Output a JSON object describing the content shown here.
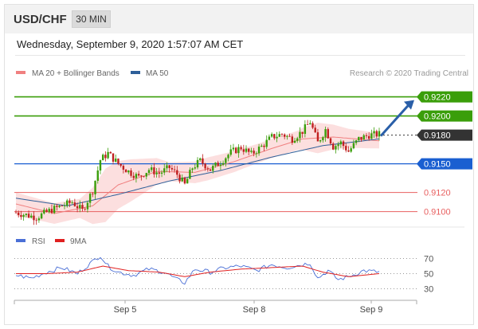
{
  "header": {
    "symbol": "USD/CHF",
    "timeframe": "30 MIN",
    "timestamp": "Wednesday, September 9, 2020 1:57:07 AM CET"
  },
  "legend": {
    "ma20_label": "MA 20 + Bollinger Bands",
    "ma50_label": "MA 50",
    "ma20_color": "#f08080",
    "ma50_color": "#2e5f99",
    "copyright": "Research © 2020 Trading Central"
  },
  "rsi_legend": {
    "rsi_label": "RSI",
    "ma_label": "9MA",
    "rsi_color": "#4a6fd6",
    "ma_color": "#e02020"
  },
  "colors": {
    "resistance": "#3a9e0a",
    "support_pivot": "#1a5fd1",
    "support_minor": "#e86060",
    "current_price": "#333333",
    "bull_candle": "#3a9e0a",
    "bear_candle": "#c02020",
    "band_fill": "#fbd9d9",
    "arrow": "#2a5fa8"
  },
  "chart_data": [
    {
      "type": "candlestick",
      "title": "",
      "x_tick_labels": [
        "Sep 5",
        "Sep 8",
        "Sep 9"
      ],
      "ylim": [
        0.9088,
        0.9238
      ],
      "levels": [
        {
          "value": 0.922,
          "label": "0.9220",
          "kind": "resistance"
        },
        {
          "value": 0.92,
          "label": "0.9200",
          "kind": "resistance"
        },
        {
          "value": 0.918,
          "label": "0.9180",
          "kind": "current"
        },
        {
          "value": 0.915,
          "label": "0.9150",
          "kind": "pivot"
        },
        {
          "value": 0.912,
          "label": "0.9120",
          "kind": "support"
        },
        {
          "value": 0.91,
          "label": "0.9100",
          "kind": "support"
        }
      ],
      "price_anchors": [
        [
          0,
          0.9099
        ],
        [
          8,
          0.9094
        ],
        [
          14,
          0.9102
        ],
        [
          18,
          0.9106
        ],
        [
          22,
          0.911
        ],
        [
          26,
          0.9101
        ],
        [
          30,
          0.9122
        ],
        [
          33,
          0.9154
        ],
        [
          36,
          0.9161
        ],
        [
          40,
          0.915
        ],
        [
          44,
          0.9142
        ],
        [
          48,
          0.9136
        ],
        [
          52,
          0.9144
        ],
        [
          56,
          0.914
        ],
        [
          60,
          0.9146
        ],
        [
          63,
          0.9139
        ],
        [
          66,
          0.9128
        ],
        [
          69,
          0.9146
        ],
        [
          72,
          0.9153
        ],
        [
          76,
          0.9144
        ],
        [
          80,
          0.9152
        ],
        [
          84,
          0.9162
        ],
        [
          88,
          0.9167
        ],
        [
          92,
          0.916
        ],
        [
          96,
          0.9168
        ],
        [
          100,
          0.9178
        ],
        [
          104,
          0.9181
        ],
        [
          108,
          0.9176
        ],
        [
          112,
          0.9184
        ],
        [
          115,
          0.9194
        ],
        [
          118,
          0.9172
        ],
        [
          121,
          0.9186
        ],
        [
          124,
          0.9168
        ],
        [
          127,
          0.9172
        ],
        [
          130,
          0.9163
        ],
        [
          134,
          0.9176
        ],
        [
          138,
          0.918
        ],
        [
          142,
          0.9181
        ]
      ],
      "ma20_anchors": [
        [
          0,
          0.9108
        ],
        [
          15,
          0.9098
        ],
        [
          30,
          0.9106
        ],
        [
          40,
          0.9128
        ],
        [
          55,
          0.9142
        ],
        [
          70,
          0.9141
        ],
        [
          85,
          0.9152
        ],
        [
          100,
          0.9166
        ],
        [
          112,
          0.9176
        ],
        [
          124,
          0.9178
        ],
        [
          142,
          0.9174
        ]
      ],
      "ma50_anchors": [
        [
          0,
          0.9114
        ],
        [
          20,
          0.9106
        ],
        [
          40,
          0.9118
        ],
        [
          60,
          0.9132
        ],
        [
          80,
          0.9143
        ],
        [
          100,
          0.9157
        ],
        [
          120,
          0.9169
        ],
        [
          142,
          0.9176
        ]
      ],
      "band_halfwidth_anchors": [
        [
          0,
          0.0012
        ],
        [
          25,
          0.001
        ],
        [
          35,
          0.0028
        ],
        [
          45,
          0.0022
        ],
        [
          60,
          0.001
        ],
        [
          75,
          0.0012
        ],
        [
          95,
          0.001
        ],
        [
          110,
          0.001
        ],
        [
          118,
          0.0016
        ],
        [
          130,
          0.001
        ],
        [
          142,
          0.0008
        ]
      ],
      "forecast_arrow": {
        "from": 0.918,
        "to": 0.922
      }
    },
    {
      "type": "line",
      "title": "RSI",
      "ylim": [
        20,
        80
      ],
      "y_ticks": [
        70,
        50,
        30
      ],
      "series": [
        {
          "name": "RSI",
          "anchors": [
            [
              0,
              48
            ],
            [
              6,
              44
            ],
            [
              12,
              52
            ],
            [
              18,
              58
            ],
            [
              24,
              50
            ],
            [
              30,
              66
            ],
            [
              33,
              74
            ],
            [
              36,
              60
            ],
            [
              40,
              52
            ],
            [
              46,
              48
            ],
            [
              52,
              56
            ],
            [
              58,
              52
            ],
            [
              63,
              42
            ],
            [
              66,
              38
            ],
            [
              70,
              56
            ],
            [
              76,
              52
            ],
            [
              82,
              58
            ],
            [
              88,
              60
            ],
            [
              94,
              54
            ],
            [
              100,
              62
            ],
            [
              106,
              58
            ],
            [
              112,
              62
            ],
            [
              115,
              64
            ],
            [
              118,
              44
            ],
            [
              122,
              54
            ],
            [
              126,
              42
            ],
            [
              130,
              46
            ],
            [
              136,
              54
            ],
            [
              142,
              52
            ]
          ]
        },
        {
          "name": "9MA",
          "anchors": [
            [
              0,
              50
            ],
            [
              12,
              50
            ],
            [
              24,
              52
            ],
            [
              34,
              60
            ],
            [
              44,
              54
            ],
            [
              56,
              52
            ],
            [
              66,
              46
            ],
            [
              76,
              52
            ],
            [
              88,
              56
            ],
            [
              100,
              58
            ],
            [
              112,
              60
            ],
            [
              120,
              52
            ],
            [
              130,
              46
            ],
            [
              142,
              50
            ]
          ]
        }
      ]
    }
  ]
}
